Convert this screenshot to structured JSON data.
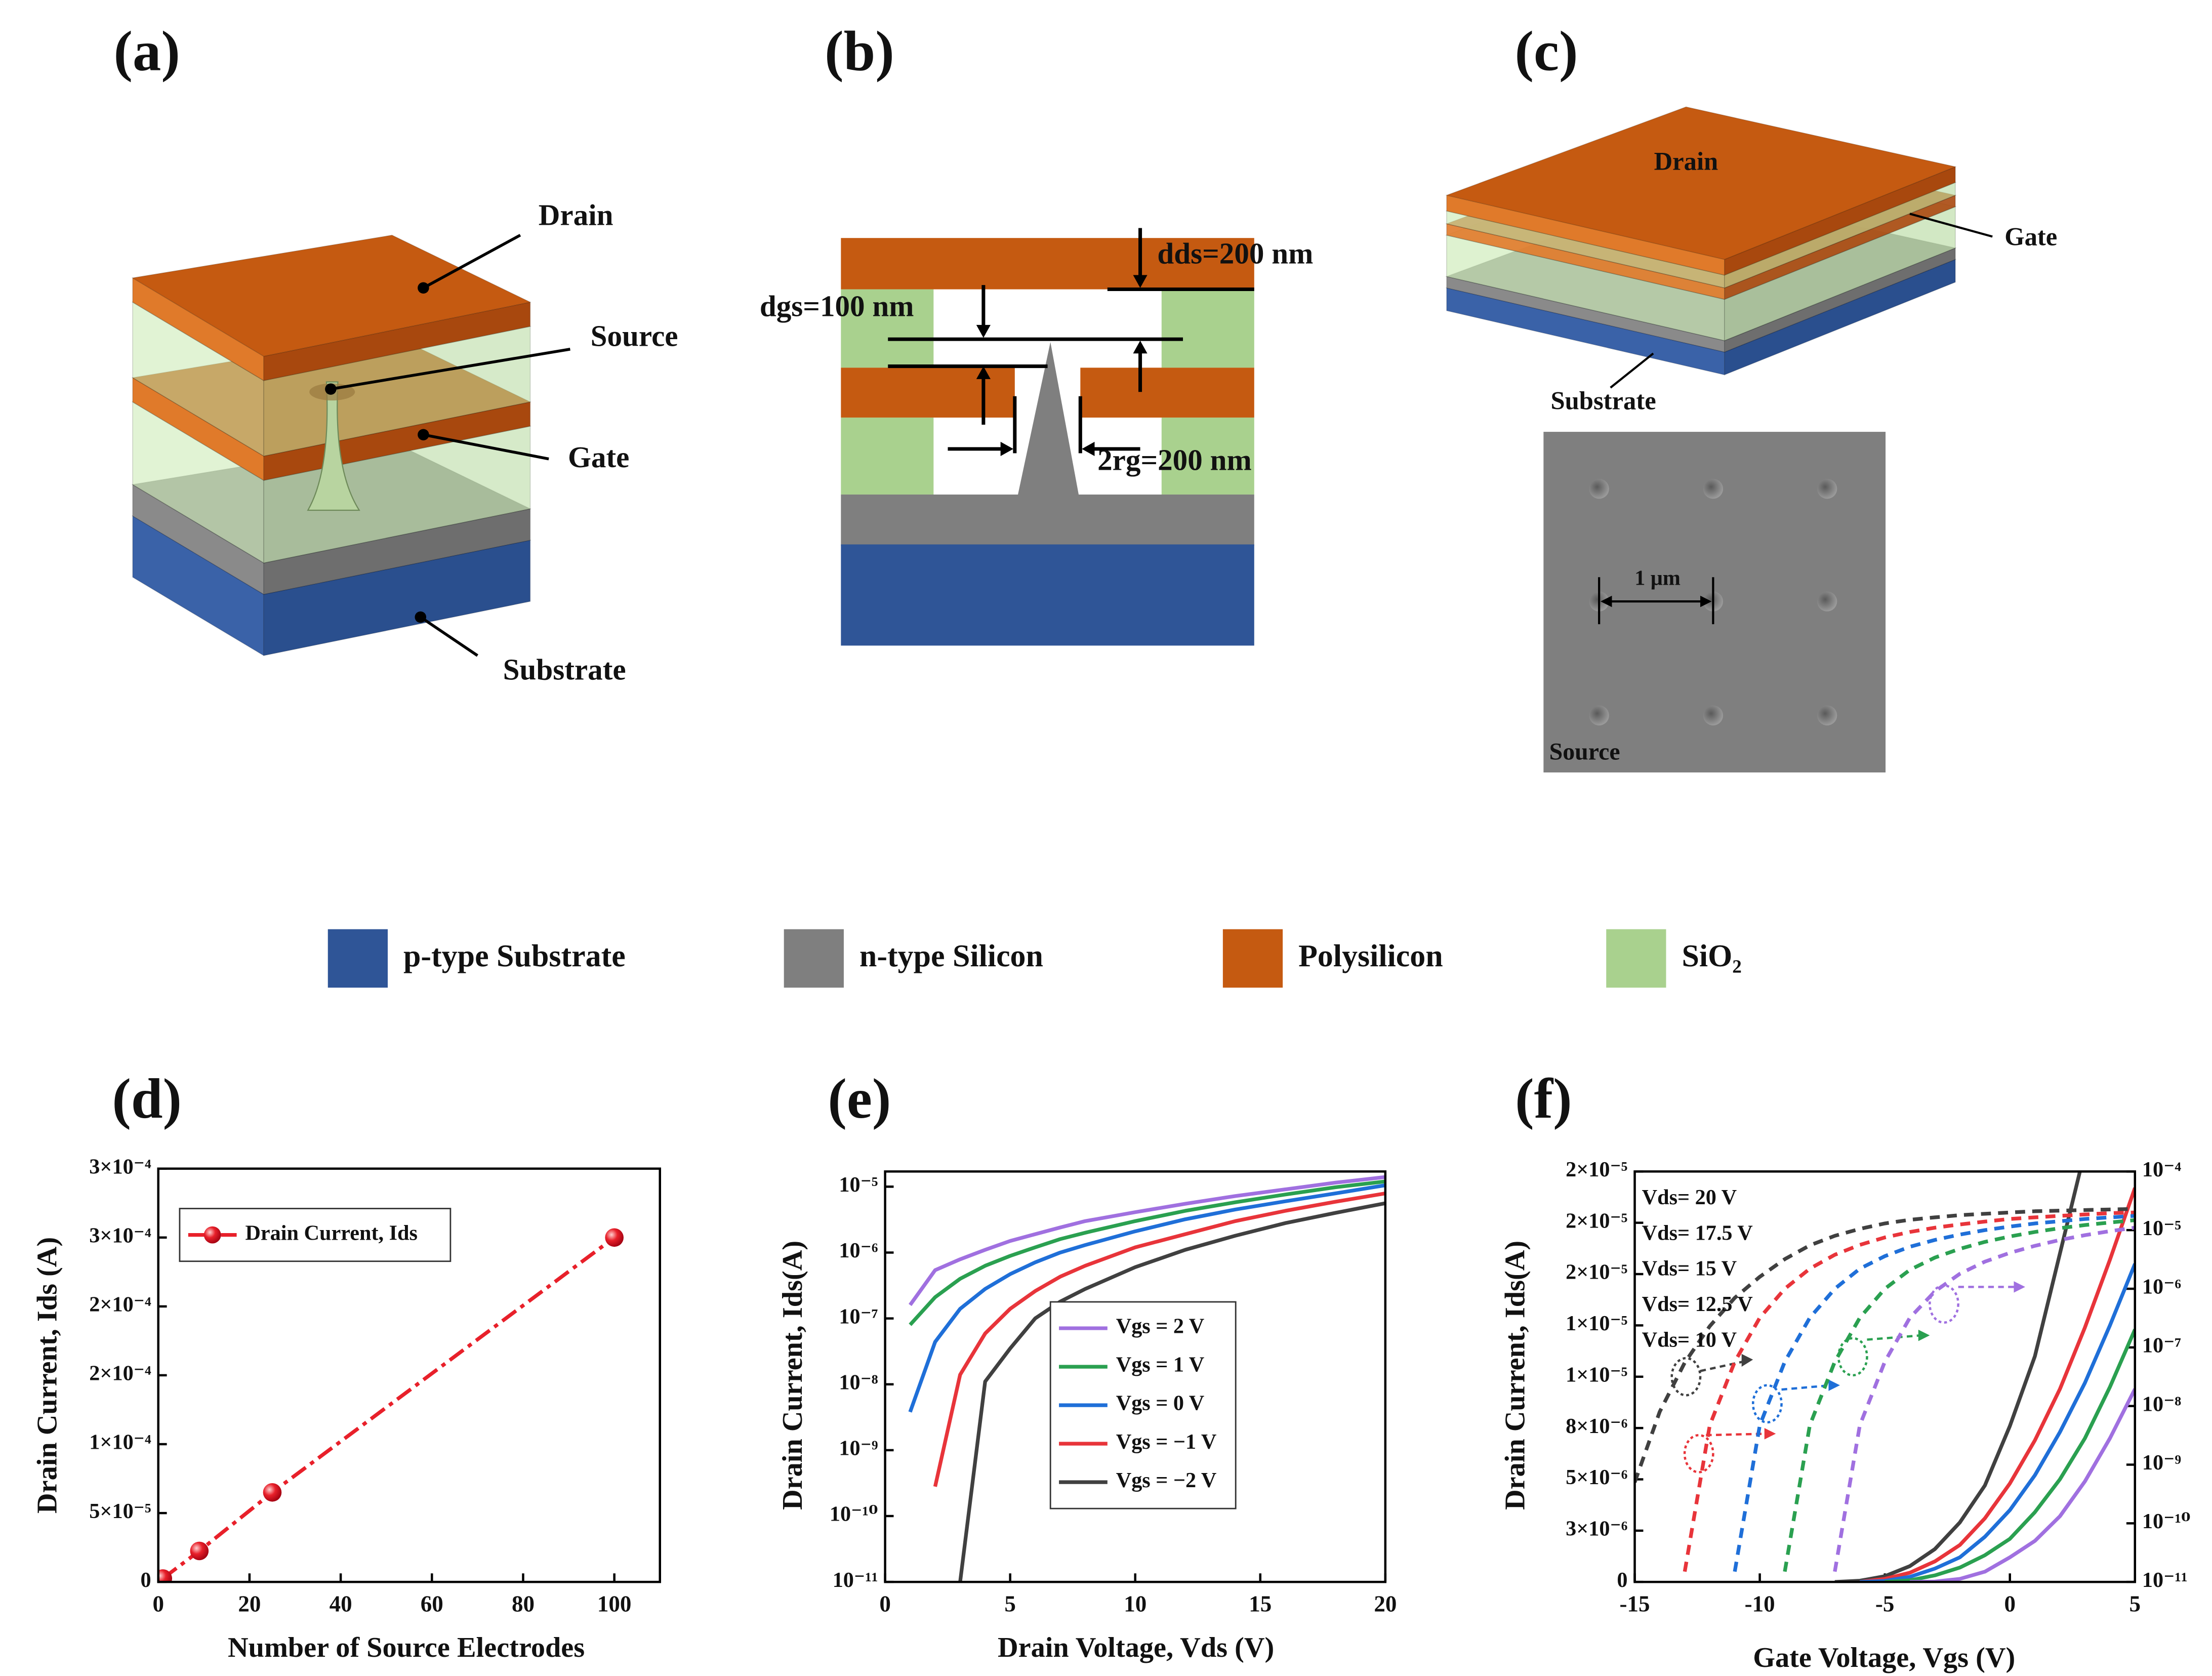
{
  "panel_labels": [
    "(a)",
    "(b)",
    "(c)",
    "(d)",
    "(e)",
    "(f)"
  ],
  "diagram_a": {
    "drain": "Drain",
    "source": "Source",
    "gate": "Gate",
    "substrate": "Substrate"
  },
  "diagram_b": {
    "d_ds": "dds=200 nm",
    "d_gs": "dgs=100 nm",
    "r_g": "2rg=200 nm"
  },
  "diagram_c": {
    "drain": "Drain",
    "gate": "Gate",
    "substrate": "Substrate",
    "pitch": "1 μm",
    "source": "Source"
  },
  "materials": [
    {
      "label": "p-type Substrate",
      "color": "#2f5597"
    },
    {
      "label": "n-type Silicon",
      "color": "#7f7f7f"
    },
    {
      "label": "Polysilicon",
      "color": "#c55a11"
    },
    {
      "label": "SiO₂",
      "color": "#a9d18e"
    }
  ],
  "chart_data": [
    {
      "type": "line",
      "x_label": "Number of Source Electrodes",
      "y_label": "Drain Current, Ids (A)",
      "x": [
        1,
        9,
        25,
        100
      ],
      "series": [
        {
          "name": "Drain Current, Ids",
          "color": "#e8202a",
          "values": [
            2.5e-06,
            2.25e-05,
            6.5e-05,
            0.00025
          ],
          "line_style": "dashdot",
          "marker": "circle"
        }
      ],
      "xlim": [
        0,
        110
      ],
      "xticks": [
        0,
        20,
        40,
        60,
        80,
        100
      ],
      "ylim": [
        0,
        0.0003
      ],
      "yticks": [
        0,
        {
          "value": 5e-05,
          "label": "5×10⁻⁵"
        },
        {
          "value": 0.0001,
          "label": "1×10⁻⁴"
        },
        {
          "value": 0.00015,
          "label": "2×10⁻⁴"
        },
        {
          "value": 0.0002,
          "label": "2×10⁻⁴"
        },
        {
          "value": 0.00025,
          "label": "3×10⁻⁴"
        },
        {
          "value": 0.0003,
          "label": "3×10⁻⁴"
        }
      ],
      "legend": "upper left"
    },
    {
      "type": "line",
      "x_label": "Drain Voltage, Vds (V)",
      "y_label": "Drain Current, Ids(A)",
      "x": [
        1,
        2,
        3,
        4,
        5,
        6,
        7,
        8,
        10,
        12,
        14,
        16,
        18,
        20
      ],
      "yscale": "log",
      "series": [
        {
          "name": "Vgs =  2 V",
          "color": "#a070e0",
          "values": [
            1.6e-07,
            5.4e-07,
            7.9e-07,
            1.1e-06,
            1.5e-06,
            1.9e-06,
            2.4e-06,
            3e-06,
            4.1e-06,
            5.5e-06,
            7.2e-06,
            9.1e-06,
            1.15e-05,
            1.4e-05
          ]
        },
        {
          "name": "Vgs =  1 V",
          "color": "#2aa050",
          "values": [
            8e-08,
            2.1e-07,
            4e-07,
            6.3e-07,
            8.9e-07,
            1.2e-06,
            1.6e-06,
            2e-06,
            3e-06,
            4.3e-06,
            5.8e-06,
            7.6e-06,
            9.8e-06,
            1.2e-05
          ]
        },
        {
          "name": "Vgs =  0 V",
          "color": "#1f6fd8",
          "values": [
            3.8e-09,
            4.4e-08,
            1.4e-07,
            2.8e-07,
            4.7e-07,
            7.1e-07,
            1e-06,
            1.3e-06,
            2.1e-06,
            3.2e-06,
            4.5e-06,
            6e-06,
            7.9e-06,
            1.05e-05
          ]
        },
        {
          "name": "Vgs = −1 V",
          "color": "#e8343a",
          "values": [
            null,
            2.8e-10,
            1.4e-08,
            5.9e-08,
            1.4e-07,
            2.6e-07,
            4.3e-07,
            6.3e-07,
            1.2e-06,
            1.9e-06,
            3e-06,
            4.3e-06,
            5.9e-06,
            7.9e-06
          ]
        },
        {
          "name": "Vgs = −2 V",
          "color": "#404040",
          "values": [
            null,
            null,
            1e-11,
            1.1e-08,
            3.5e-08,
            1e-07,
            1.8e-07,
            2.8e-07,
            6e-07,
            1.1e-06,
            1.8e-06,
            2.8e-06,
            4e-06,
            5.6e-06
          ]
        }
      ],
      "xlim": [
        0,
        20
      ],
      "xticks": [
        0,
        5,
        10,
        15,
        20
      ],
      "ylim": [
        1e-11,
        1.7e-05
      ],
      "yticks": [
        {
          "value": 1e-11,
          "label": "10⁻¹¹"
        },
        {
          "value": 1e-10,
          "label": "10⁻¹⁰"
        },
        {
          "value": 1e-09,
          "label": "10⁻⁹"
        },
        {
          "value": 1e-08,
          "label": "10⁻⁸"
        },
        {
          "value": 1e-07,
          "label": "10⁻⁷"
        },
        {
          "value": 1e-06,
          "label": "10⁻⁶"
        },
        {
          "value": 1e-05,
          "label": "10⁻⁵"
        }
      ],
      "legend": "center right"
    },
    {
      "type": "line",
      "x_label": "Gate Voltage, Vgs (V)",
      "y_label": "Drain Current, Ids(A)",
      "x": [
        -15,
        -14,
        -13,
        -12,
        -11,
        -10,
        -9,
        -8,
        -7,
        -6,
        -5,
        -4,
        -3,
        -2,
        -1,
        0,
        1,
        2,
        3,
        4,
        5
      ],
      "series": [
        {
          "name": "Vds= 20 V",
          "color": "#404040",
          "values": [
            null,
            null,
            null,
            null,
            null,
            null,
            null,
            null,
            0,
            6e-08,
            2.8e-07,
            7.7e-07,
            1.6e-06,
            2.9e-06,
            4.7e-06,
            7.6e-06,
            1.1e-05,
            1.6e-05,
            2.1e-05,
            2.8e-05,
            3.5e-05
          ]
        },
        {
          "name": "Vds= 17.5 V",
          "color": "#e8343a",
          "values": [
            null,
            null,
            null,
            null,
            null,
            null,
            null,
            null,
            null,
            0,
            1.5e-07,
            4.5e-07,
            1e-06,
            1.8e-06,
            3.1e-06,
            4.8e-06,
            6.9e-06,
            9.4e-06,
            1.24e-05,
            1.57e-05,
            1.92e-05
          ]
        },
        {
          "name": "Vds= 15 V",
          "color": "#1f6fd8",
          "values": [
            null,
            null,
            null,
            null,
            null,
            null,
            null,
            null,
            null,
            0,
            5e-08,
            2.5e-07,
            6.5e-07,
            1.2e-06,
            2.2e-06,
            3.5e-06,
            5.2e-06,
            7.3e-06,
            9.7e-06,
            1.25e-05,
            1.55e-05
          ]
        },
        {
          "name": "Vds= 12.5 V",
          "color": "#2aa050",
          "values": [
            null,
            null,
            null,
            null,
            null,
            null,
            null,
            null,
            null,
            null,
            0,
            8e-08,
            3.2e-07,
            7e-07,
            1.3e-06,
            2.1e-06,
            3.4e-06,
            5e-06,
            7e-06,
            9.5e-06,
            1.23e-05
          ]
        },
        {
          "name": "Vds= 10 V",
          "color": "#a070e0",
          "values": [
            null,
            null,
            null,
            null,
            null,
            null,
            null,
            null,
            null,
            null,
            null,
            0,
            2e-08,
            1.5e-07,
            5e-07,
            1.2e-06,
            2e-06,
            3.2e-06,
            4.9e-06,
            7e-06,
            9.4e-06
          ]
        },
        {
          "color": "#404040",
          "axis": "y2",
          "line_style": "dash",
          "values": [
            5e-10,
            8e-09,
            5.5e-08,
            2.3e-07,
            7e-07,
            1.6e-06,
            3.2e-06,
            5.5e-06,
            8e-06,
            1.05e-05,
            1.3e-05,
            1.5e-05,
            1.65e-05,
            1.8e-05,
            1.9e-05,
            2e-05,
            2.1e-05,
            2.15e-05,
            2.2e-05,
            2.25e-05,
            2.3e-05
          ]
        },
        {
          "color": "#e8343a",
          "axis": "y2",
          "line_style": "dash",
          "values": [
            null,
            null,
            1.5e-11,
            4.7e-09,
            5.7e-08,
            3.2e-07,
            1e-06,
            2.2e-06,
            3.8e-06,
            5.6e-06,
            7.5e-06,
            9.3e-06,
            1.1e-05,
            1.25e-05,
            1.4e-05,
            1.55e-05,
            1.65e-05,
            1.75e-05,
            1.85e-05,
            1.95e-05,
            2e-05
          ]
        },
        {
          "color": "#1f6fd8",
          "axis": "y2",
          "line_style": "dash",
          "values": [
            null,
            null,
            null,
            null,
            1.5e-11,
            4.7e-09,
            5.7e-08,
            3.2e-07,
            1e-06,
            2.2e-06,
            3.6e-06,
            5.2e-06,
            6.8e-06,
            8.4e-06,
            1e-05,
            1.15e-05,
            1.3e-05,
            1.42e-05,
            1.55e-05,
            1.65e-05,
            1.75e-05
          ]
        },
        {
          "color": "#2aa050",
          "axis": "y2",
          "line_style": "dash",
          "values": [
            null,
            null,
            null,
            null,
            null,
            null,
            1.5e-11,
            4.7e-09,
            5.7e-08,
            3.2e-07,
            1e-06,
            2.1e-06,
            3.4e-06,
            4.8e-06,
            6.3e-06,
            7.8e-06,
            9.3e-06,
            1.08e-05,
            1.22e-05,
            1.35e-05,
            1.48e-05
          ]
        },
        {
          "color": "#a070e0",
          "axis": "y2",
          "line_style": "dash",
          "values": [
            null,
            null,
            null,
            null,
            null,
            null,
            null,
            null,
            1.5e-11,
            4.7e-09,
            5.7e-08,
            3.2e-07,
            9e-07,
            1.8e-06,
            2.9e-06,
            4.1e-06,
            5.4e-06,
            6.8e-06,
            8.2e-06,
            9.6e-06,
            1.1e-05
          ]
        }
      ],
      "xlim": [
        -15,
        5
      ],
      "xticks": [
        -15,
        -10,
        -5,
        0,
        5
      ],
      "ylim": [
        0,
        2e-05
      ],
      "yticks": [
        0,
        {
          "value": 2.5e-06,
          "label": "3×10⁻⁶"
        },
        {
          "value": 5e-06,
          "label": "5×10⁻⁶"
        },
        {
          "value": 7.5e-06,
          "label": "8×10⁻⁶"
        },
        {
          "value": 1e-05,
          "label": "1×10⁻⁵"
        },
        {
          "value": 1.25e-05,
          "label": "1×10⁻⁵"
        },
        {
          "value": 1.5e-05,
          "label": "2×10⁻⁵"
        },
        {
          "value": 1.75e-05,
          "label": "2×10⁻⁵"
        },
        {
          "value": 2e-05,
          "label": "2×10⁻⁵"
        }
      ],
      "y2scale": "log",
      "y2lim": [
        1e-11,
        0.0001
      ],
      "y2ticks": [
        {
          "value": 1e-11,
          "label": "10⁻¹¹"
        },
        {
          "value": 1e-10,
          "label": "10⁻¹⁰"
        },
        {
          "value": 1e-09,
          "label": "10⁻⁹"
        },
        {
          "value": 1e-08,
          "label": "10⁻⁸"
        },
        {
          "value": 1e-07,
          "label": "10⁻⁷"
        },
        {
          "value": 1e-06,
          "label": "10⁻⁶"
        },
        {
          "value": 1e-05,
          "label": "10⁻⁵"
        },
        {
          "value": 0.0001,
          "label": "10⁻⁴"
        }
      ],
      "legend": "upper left",
      "legend_markers": false
    }
  ]
}
